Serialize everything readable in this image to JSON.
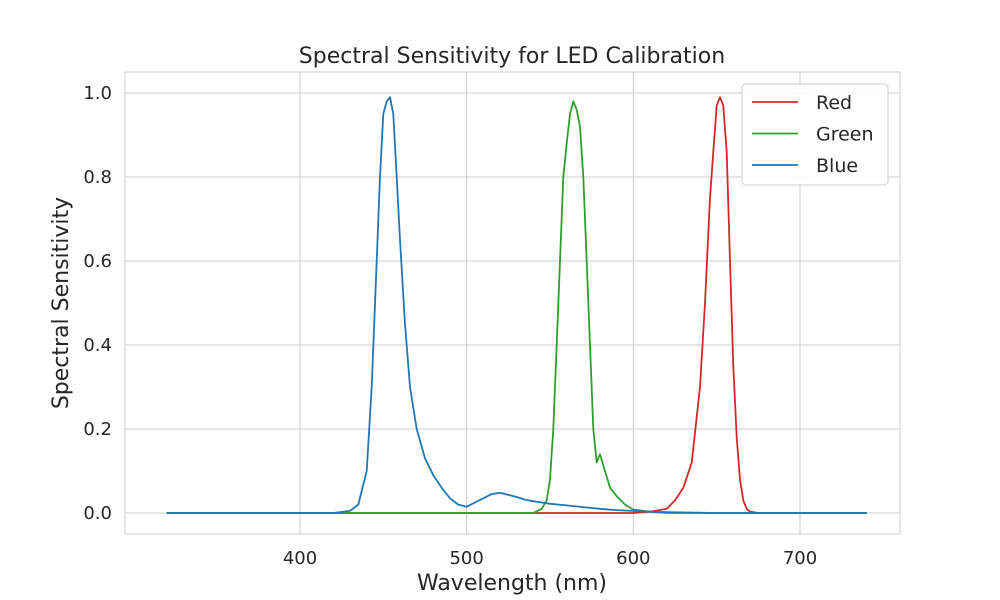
{
  "chart_data": {
    "type": "line",
    "title": "Spectral Sensitivity for LED Calibration",
    "xlabel": "Wavelength (nm)",
    "ylabel": "Spectral Sensitivity",
    "xlim": [
      295,
      760
    ],
    "ylim": [
      -0.05,
      1.05
    ],
    "xticks": [
      400,
      500,
      600,
      700
    ],
    "yticks": [
      0.0,
      0.2,
      0.4,
      0.6,
      0.8,
      1.0
    ],
    "xtick_labels": [
      "400",
      "500",
      "600",
      "700"
    ],
    "ytick_labels": [
      "0.0",
      "0.2",
      "0.4",
      "0.6",
      "0.8",
      "1.0"
    ],
    "grid": true,
    "legend_position": "top-right",
    "series": [
      {
        "name": "Red",
        "color": "#d62728",
        "x": [
          320,
          600,
          610,
          620,
          625,
          630,
          635,
          640,
          643,
          646,
          648,
          650,
          652,
          654,
          656,
          658,
          660,
          662,
          664,
          666,
          668,
          670,
          675,
          680,
          700,
          740
        ],
        "y": [
          0.0,
          0.0,
          0.003,
          0.01,
          0.03,
          0.06,
          0.12,
          0.3,
          0.5,
          0.75,
          0.86,
          0.97,
          0.99,
          0.97,
          0.86,
          0.6,
          0.35,
          0.18,
          0.08,
          0.03,
          0.01,
          0.003,
          0.0,
          0.0,
          0.0,
          0.0
        ]
      },
      {
        "name": "Green",
        "color": "#2ca02c",
        "x": [
          320,
          540,
          545,
          548,
          550,
          552,
          554,
          556,
          558,
          560,
          562,
          564,
          565,
          566,
          568,
          570,
          572,
          574,
          576,
          578,
          580,
          583,
          586,
          590,
          595,
          600,
          610,
          620,
          740
        ],
        "y": [
          0.0,
          0.0,
          0.01,
          0.03,
          0.08,
          0.2,
          0.4,
          0.6,
          0.8,
          0.88,
          0.95,
          0.98,
          0.97,
          0.96,
          0.92,
          0.8,
          0.6,
          0.4,
          0.2,
          0.12,
          0.14,
          0.1,
          0.06,
          0.04,
          0.02,
          0.008,
          0.003,
          0.0,
          0.0
        ]
      },
      {
        "name": "Blue",
        "color": "#1f77b4",
        "x": [
          320,
          420,
          430,
          435,
          440,
          443,
          446,
          448,
          450,
          452,
          454,
          456,
          458,
          460,
          463,
          466,
          470,
          475,
          480,
          485,
          490,
          495,
          500,
          505,
          510,
          515,
          520,
          525,
          530,
          535,
          540,
          545,
          550,
          560,
          570,
          580,
          590,
          600,
          610,
          620,
          650,
          740
        ],
        "y": [
          0.0,
          0.0,
          0.005,
          0.02,
          0.1,
          0.3,
          0.6,
          0.8,
          0.95,
          0.98,
          0.99,
          0.95,
          0.8,
          0.65,
          0.45,
          0.3,
          0.2,
          0.13,
          0.09,
          0.06,
          0.035,
          0.02,
          0.015,
          0.025,
          0.035,
          0.045,
          0.048,
          0.043,
          0.038,
          0.032,
          0.028,
          0.025,
          0.022,
          0.018,
          0.014,
          0.01,
          0.007,
          0.005,
          0.003,
          0.002,
          0.0,
          0.0
        ]
      }
    ]
  }
}
